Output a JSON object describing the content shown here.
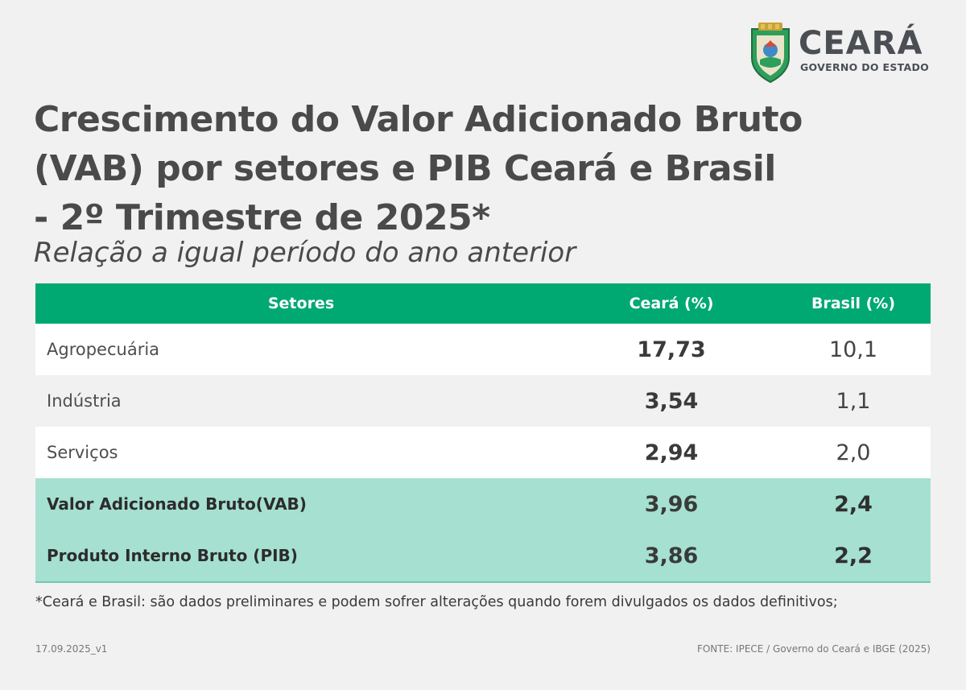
{
  "logo": {
    "name": "CEARÁ",
    "subtitle": "GOVERNO DO ESTADO",
    "icon": "state-coat-of-arms-icon"
  },
  "title_lines": [
    "Crescimento do Valor Adicionado Bruto",
    "(VAB) por setores e PIB Ceará e Brasil",
    "- 2º Trimestre de 2025*"
  ],
  "subtitle": "Relação a igual período do ano anterior",
  "table": {
    "headers": [
      "Setores",
      "Ceará (%)",
      "Brasil (%)"
    ],
    "rows": [
      {
        "label": "Agropecuária",
        "ceara": "17,73",
        "brasil": "10,1"
      },
      {
        "label": "Indústria",
        "ceara": "3,54",
        "brasil": "1,1"
      },
      {
        "label": "Serviços",
        "ceara": "2,94",
        "brasil": "2,0"
      },
      {
        "label": "Valor Adicionado Bruto(VAB)",
        "ceara": "3,96",
        "brasil": "2,4"
      },
      {
        "label": "Produto Interno Bruto (PIB)",
        "ceara": "3,86",
        "brasil": "2,2"
      }
    ]
  },
  "footnote": "*Ceará e Brasil: são dados preliminares e podem sofrer alterações quando forem divulgados os dados definitivos;",
  "version": "17.09.2025_v1",
  "source": "FONTE: IPECE / Governo do Ceará e IBGE (2025)",
  "colors": {
    "header_green": "#00a971",
    "highlight_mint": "#a6e0d0",
    "background": "#f1f1f1",
    "text_dark": "#4a4a4a"
  }
}
